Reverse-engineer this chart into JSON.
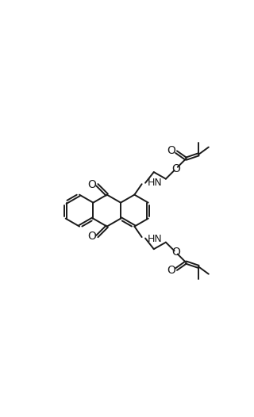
{
  "bg_color": "#ffffff",
  "line_color": "#1a1a1a",
  "lw": 1.4,
  "fs": 9,
  "BL": 0.82,
  "mx": 3.8,
  "my": 8.3,
  "xlim": [
    0,
    10
  ],
  "ylim": [
    0,
    16.6
  ],
  "figw": 3.2,
  "figh": 5.26,
  "dpi": 100
}
